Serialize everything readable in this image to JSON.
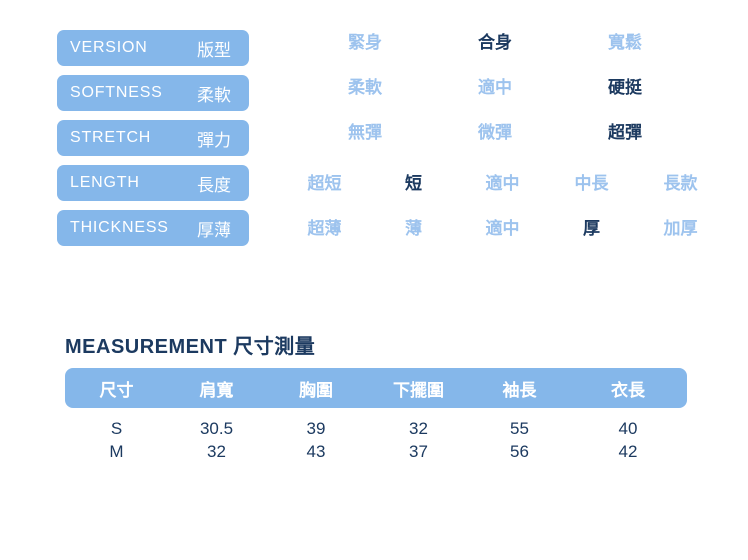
{
  "colors": {
    "box_blue": "#85b7ea",
    "unselected_option": "#9dc3ee",
    "dark_navy": "#1c3a60"
  },
  "attributes": {
    "rows": [
      {
        "name_en": "VERSION",
        "name_zh": "版型",
        "options": [
          "緊身",
          "合身",
          "寬鬆"
        ],
        "selected_index": 1,
        "selected_option": "合身"
      },
      {
        "name_en": "SOFTNESS",
        "name_zh": "柔軟",
        "options": [
          "柔軟",
          "適中",
          "硬挺"
        ],
        "selected_index": 2,
        "selected_option": "硬挺"
      },
      {
        "name_en": "STRETCH",
        "name_zh": "彈力",
        "options": [
          "無彈",
          "微彈",
          "超彈"
        ],
        "selected_index": 2,
        "selected_option": "超彈"
      },
      {
        "name_en": "LENGTH",
        "name_zh": "長度",
        "options": [
          "超短",
          "短",
          "適中",
          "中長",
          "長款"
        ],
        "selected_index": 1,
        "selected_option": "短"
      },
      {
        "name_en": "THICKNESS",
        "name_zh": "厚薄",
        "options": [
          "超薄",
          "薄",
          "適中",
          "厚",
          "加厚"
        ],
        "selected_index": 3,
        "selected_option": "厚"
      }
    ]
  },
  "measurement": {
    "title": "MEASUREMENT 尺寸測量",
    "table": {
      "headers": [
        "尺寸",
        "肩寬",
        "胸圍",
        "下擺圍",
        "袖長",
        "衣長"
      ],
      "rows": [
        {
          "size": "S",
          "values": [
            "30.5",
            "39",
            "32",
            "55",
            "40"
          ]
        },
        {
          "size": "M",
          "values": [
            "32",
            "43",
            "37",
            "56",
            "42"
          ]
        }
      ]
    }
  }
}
